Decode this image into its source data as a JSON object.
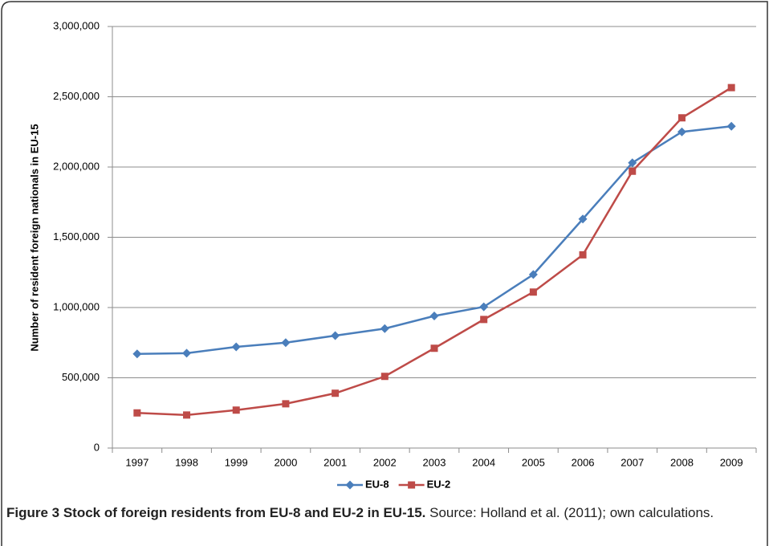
{
  "chart_data": {
    "type": "line",
    "ylabel": "Number of resident foreign nationals in EU-15",
    "categories": [
      "1997",
      "1998",
      "1999",
      "2000",
      "2001",
      "2002",
      "2003",
      "2004",
      "2005",
      "2006",
      "2007",
      "2008",
      "2009"
    ],
    "series": [
      {
        "name": "EU-8",
        "color": "#4a7ebb",
        "marker": "diamond",
        "values": [
          670000,
          675000,
          720000,
          750000,
          800000,
          850000,
          940000,
          1005000,
          1235000,
          1630000,
          2030000,
          2250000,
          2290000
        ]
      },
      {
        "name": "EU-2",
        "color": "#be4b48",
        "marker": "square",
        "values": [
          250000,
          235000,
          270000,
          315000,
          390000,
          510000,
          710000,
          915000,
          1110000,
          1375000,
          1970000,
          2350000,
          2565000
        ]
      }
    ],
    "ylim": [
      0,
      3000000
    ],
    "yticks": [
      0,
      {
        "value": 500000,
        "label": "500,000"
      },
      {
        "value": 1000000,
        "label": "1,000,000"
      },
      {
        "value": 1500000,
        "label": "1,500,000"
      },
      {
        "value": 2000000,
        "label": "2,000,000"
      },
      {
        "value": 2500000,
        "label": "2,500,000"
      },
      {
        "value": 3000000,
        "label": "3,000,000"
      }
    ],
    "grid": true,
    "legend": "bottom"
  },
  "caption": {
    "title": "Figure 3 Stock of foreign residents from EU-8 and EU-2 in EU-15.",
    "source": "Source: Holland et al. (2011); own calculations."
  }
}
